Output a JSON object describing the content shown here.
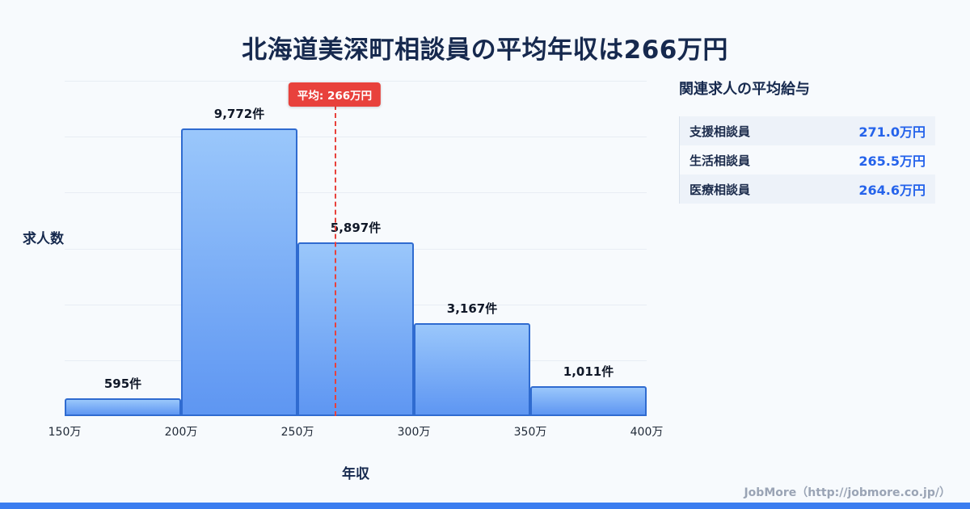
{
  "page": {
    "title": "北海道美深町相談員の平均年収は266万円",
    "footer_credit": "JobMore（http://jobmore.co.jp/）"
  },
  "chart_data": {
    "type": "bar",
    "title": "北海道美深町相談員の平均年収は266万円",
    "xlabel": "年収",
    "ylabel": "求人数",
    "x_ticks": [
      "150万",
      "200万",
      "250万",
      "300万",
      "350万",
      "400万"
    ],
    "bin_edges_manen": [
      150,
      200,
      250,
      300,
      350,
      400
    ],
    "categories": [
      "150万-200万",
      "200万-250万",
      "250万-300万",
      "300万-350万",
      "350万-400万"
    ],
    "values": [
      595,
      9772,
      5897,
      3167,
      1011
    ],
    "value_labels": [
      "595件",
      "9,772件",
      "5,897件",
      "3,167件",
      "1,011件"
    ],
    "ylim": [
      0,
      11400
    ],
    "grid": true,
    "legend": false,
    "average": {
      "label": "平均: 266万円",
      "value_manen": 266
    }
  },
  "side_panel": {
    "heading": "関連求人の平均給与",
    "rows": [
      {
        "label": "支援相談員",
        "value": "271.0万円"
      },
      {
        "label": "生活相談員",
        "value": "265.5万円"
      },
      {
        "label": "医療相談員",
        "value": "264.6万円"
      }
    ]
  },
  "colors": {
    "background": "#f7fafd",
    "bar_fill_top": "#9ac7fb",
    "bar_fill_bottom": "#5e96f2",
    "bar_border": "#2f6bd0",
    "average_line": "#e8413c",
    "accent_blue": "#2563eb",
    "title_text": "#16294e",
    "bottom_strip": "#3b7df0",
    "footer_text": "#9aa4b5"
  }
}
